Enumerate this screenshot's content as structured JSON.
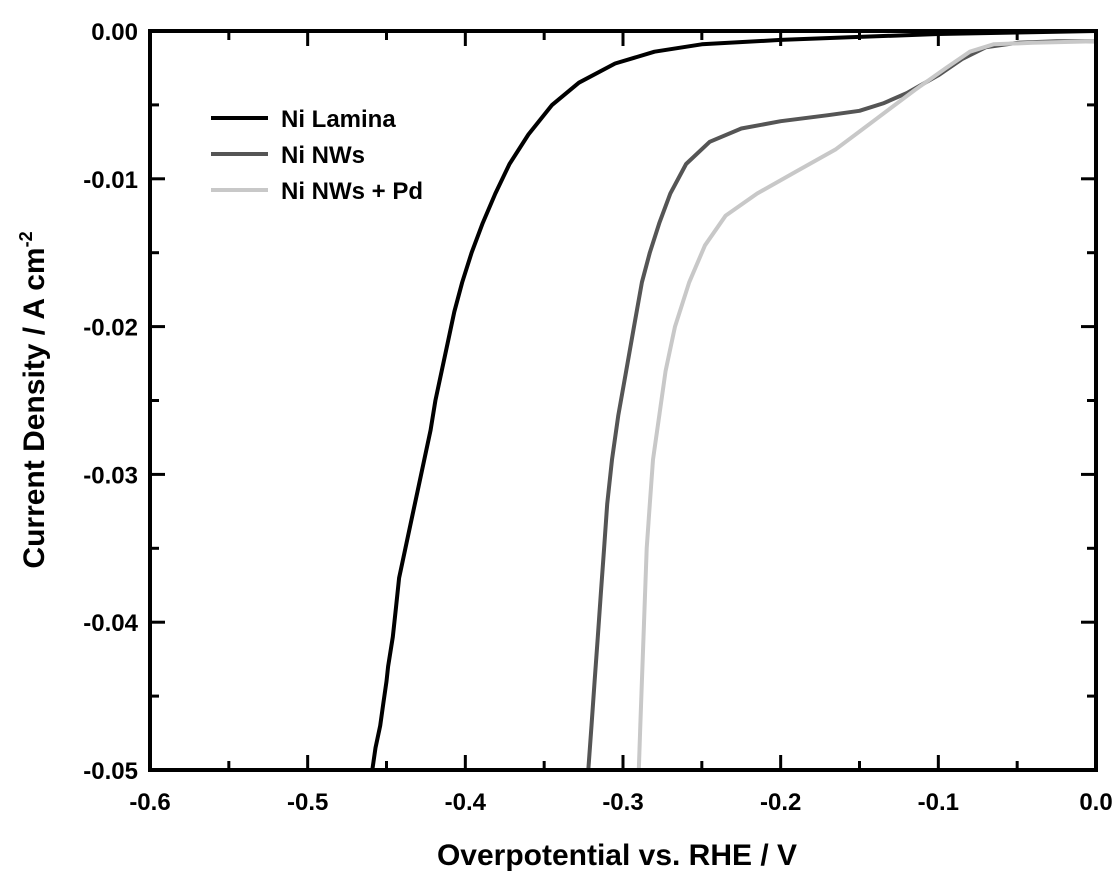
{
  "chart_data": {
    "type": "line",
    "title": "",
    "xlabel": "Overpotential vs. RHE / V",
    "ylabel_main": "Current Density / A cm",
    "ylabel_sup": "-2",
    "xlim": [
      -0.6,
      0.0
    ],
    "ylim": [
      -0.05,
      0.0
    ],
    "x_ticks": [
      -0.6,
      -0.5,
      -0.4,
      -0.3,
      -0.2,
      -0.1,
      0.0
    ],
    "x_tick_labels": [
      "-0.6",
      "-0.5",
      "-0.4",
      "-0.3",
      "-0.2",
      "-0.1",
      "0.0"
    ],
    "y_ticks": [
      0.0,
      -0.01,
      -0.02,
      -0.03,
      -0.04,
      -0.05
    ],
    "y_tick_labels": [
      "0.00",
      "-0.01",
      "-0.02",
      "-0.03",
      "-0.04",
      "-0.05"
    ],
    "grid": false,
    "legend_position": "top-left",
    "series": [
      {
        "name": "Ni Lamina",
        "color": "#000000",
        "points": [
          [
            -0.459,
            -0.05
          ],
          [
            -0.457,
            -0.0485
          ],
          [
            -0.454,
            -0.047
          ],
          [
            -0.452,
            -0.0455
          ],
          [
            -0.45,
            -0.044
          ],
          [
            -0.449,
            -0.043
          ],
          [
            -0.446,
            -0.041
          ],
          [
            -0.444,
            -0.039
          ],
          [
            -0.442,
            -0.037
          ],
          [
            -0.438,
            -0.035
          ],
          [
            -0.434,
            -0.033
          ],
          [
            -0.43,
            -0.031
          ],
          [
            -0.426,
            -0.029
          ],
          [
            -0.422,
            -0.027
          ],
          [
            -0.419,
            -0.025
          ],
          [
            -0.415,
            -0.023
          ],
          [
            -0.411,
            -0.021
          ],
          [
            -0.407,
            -0.019
          ],
          [
            -0.402,
            -0.017
          ],
          [
            -0.396,
            -0.015
          ],
          [
            -0.389,
            -0.013
          ],
          [
            -0.381,
            -0.011
          ],
          [
            -0.372,
            -0.009
          ],
          [
            -0.36,
            -0.007
          ],
          [
            -0.345,
            -0.005
          ],
          [
            -0.328,
            -0.0035
          ],
          [
            -0.305,
            -0.0022
          ],
          [
            -0.28,
            -0.0014
          ],
          [
            -0.25,
            -0.0009
          ],
          [
            -0.2,
            -0.0006
          ],
          [
            -0.15,
            -0.0004
          ],
          [
            -0.1,
            -0.0002
          ],
          [
            -0.05,
            -0.0001
          ],
          [
            0.0,
            0.0
          ]
        ]
      },
      {
        "name": "Ni NWs",
        "color": "#555555",
        "points": [
          [
            -0.322,
            -0.05
          ],
          [
            -0.32,
            -0.047
          ],
          [
            -0.318,
            -0.044
          ],
          [
            -0.316,
            -0.041
          ],
          [
            -0.314,
            -0.038
          ],
          [
            -0.312,
            -0.035
          ],
          [
            -0.31,
            -0.032
          ],
          [
            -0.307,
            -0.029
          ],
          [
            -0.303,
            -0.026
          ],
          [
            -0.298,
            -0.023
          ],
          [
            -0.293,
            -0.02
          ],
          [
            -0.288,
            -0.017
          ],
          [
            -0.283,
            -0.015
          ],
          [
            -0.277,
            -0.013
          ],
          [
            -0.27,
            -0.011
          ],
          [
            -0.26,
            -0.009
          ],
          [
            -0.245,
            -0.0075
          ],
          [
            -0.225,
            -0.0066
          ],
          [
            -0.2,
            -0.0061
          ],
          [
            -0.17,
            -0.0057
          ],
          [
            -0.15,
            -0.0054
          ],
          [
            -0.135,
            -0.0049
          ],
          [
            -0.12,
            -0.0042
          ],
          [
            -0.1,
            -0.003
          ],
          [
            -0.085,
            -0.0019
          ],
          [
            -0.07,
            -0.0011
          ],
          [
            -0.05,
            -0.0008
          ],
          [
            -0.025,
            -0.0007
          ],
          [
            0.0,
            -0.0007
          ]
        ]
      },
      {
        "name": "Ni NWs + Pd",
        "color": "#c8c8c8",
        "points": [
          [
            -0.29,
            -0.05
          ],
          [
            -0.289,
            -0.047
          ],
          [
            -0.288,
            -0.044
          ],
          [
            -0.287,
            -0.041
          ],
          [
            -0.286,
            -0.038
          ],
          [
            -0.285,
            -0.035
          ],
          [
            -0.283,
            -0.032
          ],
          [
            -0.281,
            -0.029
          ],
          [
            -0.277,
            -0.026
          ],
          [
            -0.273,
            -0.023
          ],
          [
            -0.267,
            -0.02
          ],
          [
            -0.258,
            -0.017
          ],
          [
            -0.248,
            -0.0145
          ],
          [
            -0.235,
            -0.0125
          ],
          [
            -0.215,
            -0.011
          ],
          [
            -0.19,
            -0.0095
          ],
          [
            -0.165,
            -0.008
          ],
          [
            -0.14,
            -0.006
          ],
          [
            -0.115,
            -0.004
          ],
          [
            -0.095,
            -0.0025
          ],
          [
            -0.08,
            -0.0014
          ],
          [
            -0.065,
            -0.0009
          ],
          [
            -0.04,
            -0.0008
          ],
          [
            0.0,
            -0.0007
          ]
        ]
      }
    ]
  }
}
